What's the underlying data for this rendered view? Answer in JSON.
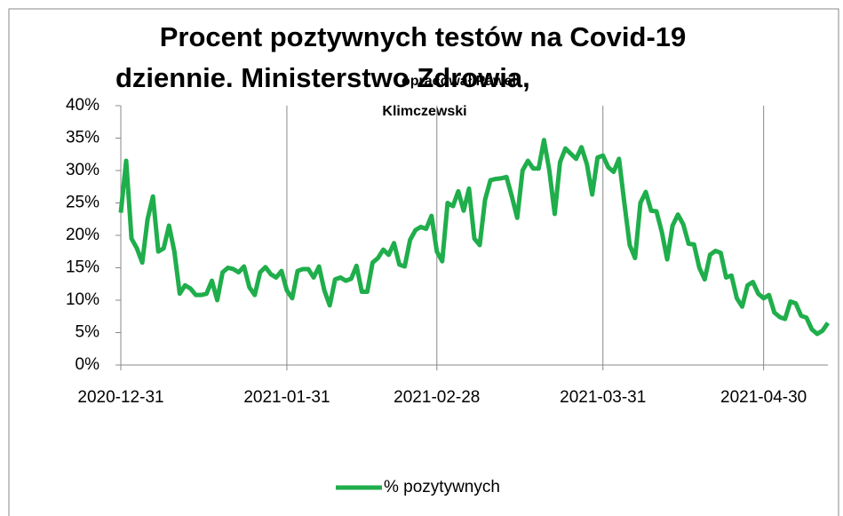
{
  "chart_data": {
    "type": "line",
    "title": [
      "Procent poztywnych testów na Covid-19",
      "dziennie. Ministerstwo Zdrowia,"
    ],
    "subtitle": [
      "opracował Paweł",
      "Klimczewski"
    ],
    "x": [
      "2020-12-31",
      "2021-01-01",
      "2021-01-02",
      "2021-01-03",
      "2021-01-04",
      "2021-01-05",
      "2021-01-06",
      "2021-01-07",
      "2021-01-08",
      "2021-01-09",
      "2021-01-10",
      "2021-01-11",
      "2021-01-12",
      "2021-01-13",
      "2021-01-14",
      "2021-01-15",
      "2021-01-16",
      "2021-01-17",
      "2021-01-18",
      "2021-01-19",
      "2021-01-20",
      "2021-01-21",
      "2021-01-22",
      "2021-01-23",
      "2021-01-24",
      "2021-01-25",
      "2021-01-26",
      "2021-01-27",
      "2021-01-28",
      "2021-01-29",
      "2021-01-30",
      "2021-01-31",
      "2021-02-01",
      "2021-02-02",
      "2021-02-03",
      "2021-02-04",
      "2021-02-05",
      "2021-02-06",
      "2021-02-07",
      "2021-02-08",
      "2021-02-09",
      "2021-02-10",
      "2021-02-11",
      "2021-02-12",
      "2021-02-13",
      "2021-02-14",
      "2021-02-15",
      "2021-02-16",
      "2021-02-17",
      "2021-02-18",
      "2021-02-19",
      "2021-02-20",
      "2021-02-21",
      "2021-02-22",
      "2021-02-23",
      "2021-02-24",
      "2021-02-25",
      "2021-02-26",
      "2021-02-27",
      "2021-02-28",
      "2021-03-01",
      "2021-03-02",
      "2021-03-03",
      "2021-03-04",
      "2021-03-05",
      "2021-03-06",
      "2021-03-07",
      "2021-03-08",
      "2021-03-09",
      "2021-03-10",
      "2021-03-11",
      "2021-03-12",
      "2021-03-13",
      "2021-03-14",
      "2021-03-15",
      "2021-03-16",
      "2021-03-17",
      "2021-03-18",
      "2021-03-19",
      "2021-03-20",
      "2021-03-21",
      "2021-03-22",
      "2021-03-23",
      "2021-03-24",
      "2021-03-25",
      "2021-03-26",
      "2021-03-27",
      "2021-03-28",
      "2021-03-29",
      "2021-03-30",
      "2021-03-31",
      "2021-04-01",
      "2021-04-02",
      "2021-04-03",
      "2021-04-04",
      "2021-04-05",
      "2021-04-06",
      "2021-04-07",
      "2021-04-08",
      "2021-04-09",
      "2021-04-10",
      "2021-04-11",
      "2021-04-12",
      "2021-04-13",
      "2021-04-14",
      "2021-04-15",
      "2021-04-16",
      "2021-04-17",
      "2021-04-18",
      "2021-04-19",
      "2021-04-20",
      "2021-04-21",
      "2021-04-22",
      "2021-04-23",
      "2021-04-24",
      "2021-04-25",
      "2021-04-26",
      "2021-04-27",
      "2021-04-28",
      "2021-04-29",
      "2021-04-30",
      "2021-05-01",
      "2021-05-02",
      "2021-05-03",
      "2021-05-04",
      "2021-05-05",
      "2021-05-06",
      "2021-05-07",
      "2021-05-08",
      "2021-05-09",
      "2021-05-10",
      "2021-05-11",
      "2021-05-12"
    ],
    "series": [
      {
        "name": "% pozytywnych",
        "color": "#1fae4b",
        "values": [
          23.5,
          31.5,
          19.5,
          18,
          15.8,
          22.5,
          26,
          17.5,
          18,
          21.5,
          17.5,
          11,
          12.3,
          11.8,
          10.8,
          10.8,
          11,
          13,
          10,
          14.3,
          15,
          14.8,
          14.3,
          15.2,
          12,
          10.8,
          14.3,
          15.1,
          14,
          13.5,
          14.5,
          11.5,
          10.3,
          14.5,
          14.8,
          14.8,
          13.5,
          15.2,
          11.5,
          9.2,
          13.2,
          13.5,
          13,
          13.3,
          15.3,
          11.3,
          11.3,
          15.8,
          16.5,
          17.8,
          17,
          18.8,
          15.5,
          15.2,
          19.3,
          20.8,
          21.3,
          21,
          23,
          17.5,
          16,
          25,
          24.5,
          26.8,
          23.8,
          27.2,
          19.5,
          18.5,
          25.5,
          28.5,
          28.7,
          28.8,
          29,
          26,
          22.7,
          30,
          31.5,
          30.3,
          30.3,
          34.7,
          30,
          23.3,
          31.3,
          33.4,
          32.6,
          31.8,
          33.6,
          31,
          26.3,
          32,
          32.3,
          30.5,
          29.8,
          31.8,
          25,
          18.5,
          16.5,
          25,
          26.7,
          23.8,
          23.7,
          20.5,
          16.3,
          21.5,
          23.2,
          21.7,
          18.7,
          18.6,
          15,
          13.2,
          17,
          17.6,
          17.3,
          13.5,
          13.8,
          10.3,
          9,
          12.3,
          12.8,
          11,
          10.3,
          10.8,
          8.1,
          7.4,
          7.1,
          9.8,
          9.5,
          7.6,
          7.3,
          5.5,
          4.8,
          5.3,
          6.5
        ]
      }
    ],
    "xlim": [
      "2020-12-31",
      "2021-05-12"
    ],
    "xticks": [
      "2020-12-31",
      "2021-01-31",
      "2021-02-28",
      "2021-03-31",
      "2021-04-30"
    ],
    "ylim": [
      0,
      40
    ],
    "yticks": [
      {
        "value": 0,
        "label": "0%"
      },
      {
        "value": 5,
        "label": "5%"
      },
      {
        "value": 10,
        "label": "10%"
      },
      {
        "value": 15,
        "label": "15%"
      },
      {
        "value": 20,
        "label": "20%"
      },
      {
        "value": 25,
        "label": "25%"
      },
      {
        "value": 30,
        "label": "30%"
      },
      {
        "value": 35,
        "label": "35%"
      },
      {
        "value": 40,
        "label": "40%"
      }
    ],
    "xgrid": true,
    "legend": "bottom"
  }
}
